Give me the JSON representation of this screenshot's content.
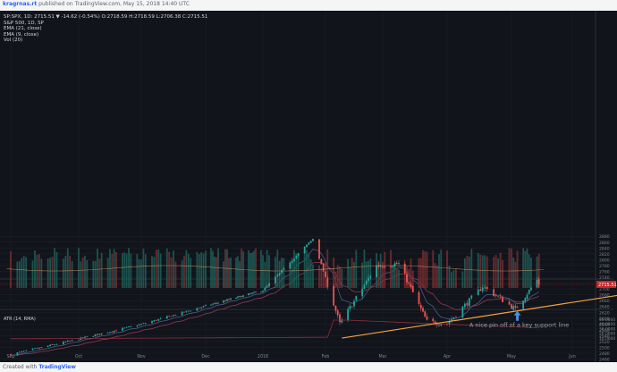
{
  "header": {
    "author": "kragrnas.rt",
    "published_text": "published on TradingView.com, May 15, 2018 14:40 UTC",
    "symbol_line": "SP:SPX, 1D: 2715.51 ▼ -14.62 (-0.54%) O:2718.59 H:2718.59 L:2706.38 C:2715.51"
  },
  "legend": {
    "title": "S&P 500, 1D, SP",
    "ema21": "EMA (21, close)",
    "ema9": "EMA (9, close)",
    "vol": "Vol (20)",
    "atr": "ATR (14, RMA)"
  },
  "annotation": {
    "text": "A nice pin off of a key support line"
  },
  "footer": {
    "created_with": "Created with",
    "brand": "TradingView"
  },
  "colors": {
    "up": "#26a69a",
    "down": "#ef5350",
    "ema21": "#8e3b4f",
    "ema9": "#4a5a8a",
    "support": "#f4a340",
    "arrow": "#4a90e2",
    "price_label": "#c62828",
    "background": "#12141b"
  },
  "chart_data": [
    {
      "type": "candlestick",
      "title": "S&P 500, 1D, SP",
      "x_tick_labels": [
        "Sep",
        "Oct",
        "Nov",
        "Dec",
        "2018",
        "Feb",
        "Mar",
        "Apr",
        "May",
        "Jun"
      ],
      "date_range": [
        "2017-09-01",
        "2018-05-15"
      ],
      "y_tick_labels": [
        2440,
        2460,
        2480,
        2500,
        2520,
        2540,
        2560,
        2580,
        2600,
        2620,
        2640,
        2660,
        2680,
        2700,
        2720,
        2740,
        2760,
        2780,
        2800,
        2820,
        2840,
        2860,
        2880
      ],
      "ylim": [
        2440,
        2890
      ],
      "last_price": 2715.51,
      "key_points": [
        {
          "date": "2017-09-01",
          "price": 2476
        },
        {
          "date": "2017-10-02",
          "price": 2529
        },
        {
          "date": "2017-11-01",
          "price": 2579
        },
        {
          "date": "2017-12-01",
          "price": 2642
        },
        {
          "date": "2018-01-02",
          "price": 2695
        },
        {
          "date": "2018-01-26",
          "price": 2872
        },
        {
          "date": "2018-02-08",
          "price": 2581
        },
        {
          "date": "2018-02-26",
          "price": 2779
        },
        {
          "date": "2018-03-09",
          "price": 2786
        },
        {
          "date": "2018-03-23",
          "price": 2588
        },
        {
          "date": "2018-04-02",
          "price": 2581
        },
        {
          "date": "2018-04-18",
          "price": 2708
        },
        {
          "date": "2018-05-03",
          "price": 2630
        },
        {
          "date": "2018-05-14",
          "price": 2730
        },
        {
          "date": "2018-05-15",
          "price": 2715.51
        }
      ],
      "support_line": {
        "start": {
          "date": "2018-02-09",
          "price": 2532
        },
        "end": {
          "date": "2018-06-30",
          "price": 2684
        }
      }
    },
    {
      "type": "bar",
      "title": "Vol (20)",
      "y_tick_labels": []
    },
    {
      "type": "line",
      "title": "ATR (14, RMA)",
      "y_tick_labels": [
        10,
        20,
        30,
        40,
        50
      ]
    }
  ]
}
